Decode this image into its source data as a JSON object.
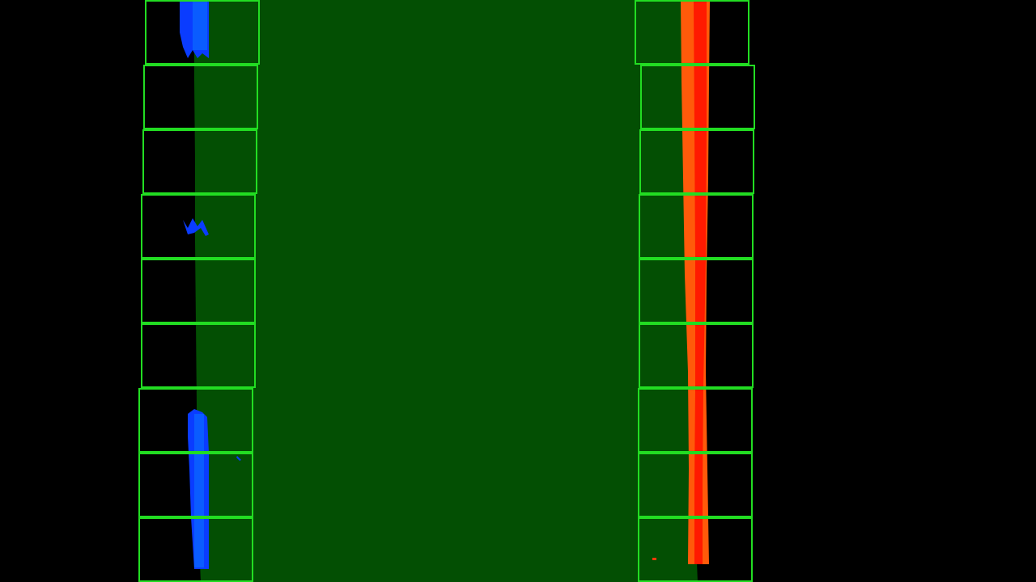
{
  "scene": {
    "description_free": true,
    "background_color": "#000000",
    "lane_fill_color": "#034f03",
    "window_color": "#22dd22",
    "left_line_color": "#0a3cff",
    "left_line_highlight": "#0a6cff",
    "right_line_color": "#ff5a0a",
    "right_line_core_color": "#ff1a00"
  },
  "sliding_windows": {
    "count_per_side": 9,
    "left": [
      {
        "center": 241
      },
      {
        "center": 241
      },
      {
        "center": 241
      },
      {
        "center": 244
      },
      {
        "center": 244
      },
      {
        "center": 244
      },
      {
        "center": 246
      },
      {
        "center": 247
      },
      {
        "center": 249
      }
    ],
    "right": [
      {
        "center": 858
      },
      {
        "center": 858
      },
      {
        "center": 858
      },
      {
        "center": 859
      },
      {
        "center": 859
      },
      {
        "center": 859
      },
      {
        "center": 860
      },
      {
        "center": 861
      },
      {
        "center": 854
      }
    ]
  }
}
